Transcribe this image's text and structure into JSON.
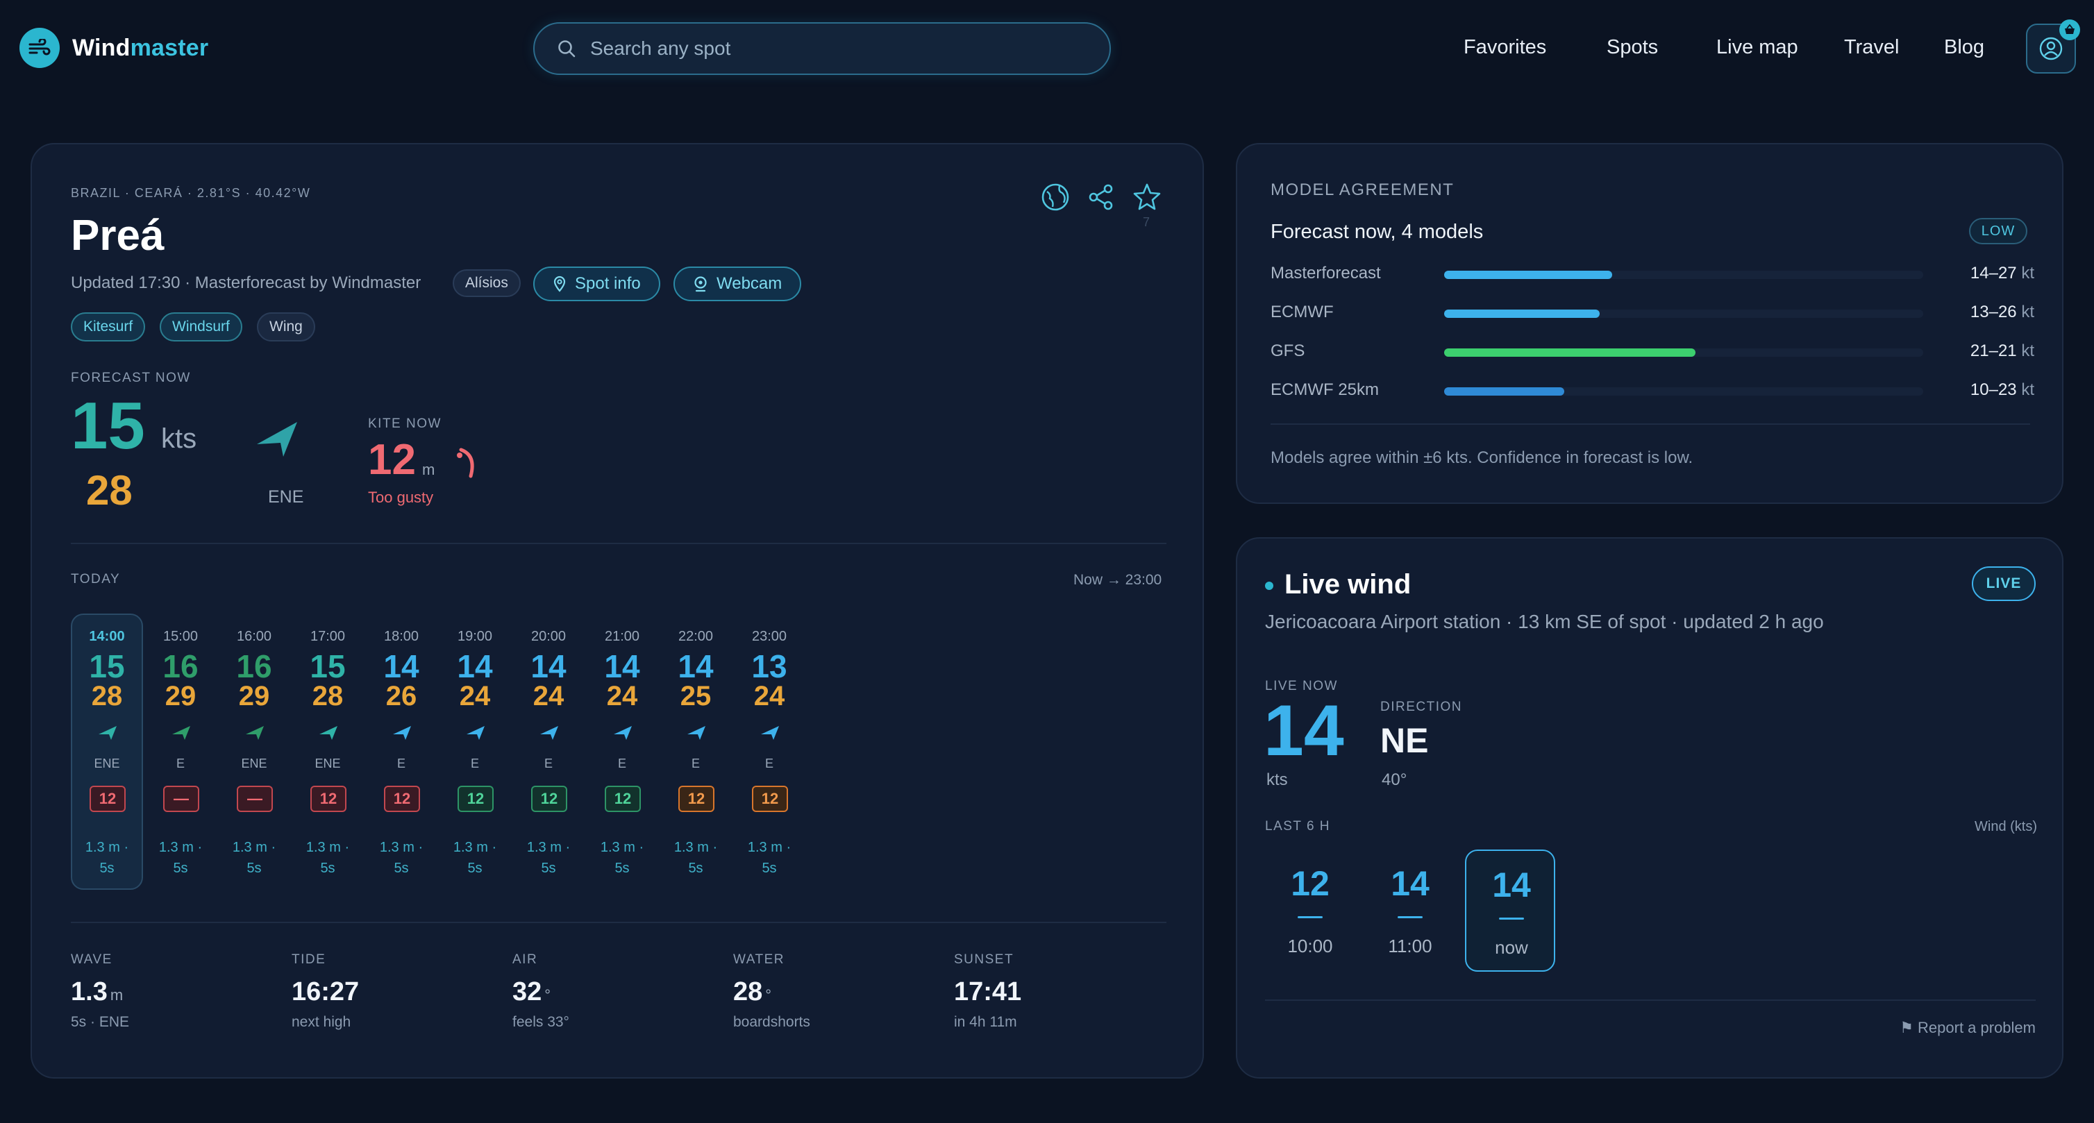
{
  "brand": {
    "name_part1": "Wind",
    "name_part2": "master"
  },
  "search": {
    "placeholder": "Search any spot"
  },
  "nav": [
    "Favorites",
    "Spots",
    "Live map",
    "Travel",
    "Blog"
  ],
  "spot": {
    "location": "BRAZIL · CEARÁ · 2.81°S · 40.42°W",
    "name": "Preá",
    "updated": "Updated 17:30 · Masterforecast by Windmaster",
    "model_chip": "Alísios",
    "spot_info_label": "Spot info",
    "webcam_label": "Webcam",
    "favorite_count": "7",
    "sports": [
      "Kitesurf",
      "Windsurf",
      "Wing"
    ]
  },
  "forecast_now": {
    "label": "FORECAST NOW",
    "wind": "15",
    "unit": "kts",
    "gust": "28",
    "direction": "ENE",
    "kite_label": "KITE NOW",
    "kite_size": "12",
    "kite_unit": "m",
    "kite_status": "Too gusty"
  },
  "today": {
    "label": "TODAY",
    "range": "Now → 23:00",
    "hours": [
      {
        "time": "14:00",
        "wind": "15",
        "gust": "28",
        "dir": "ENE",
        "kite": "12",
        "kite_state": "red",
        "wave_line1": "1.3 m ·",
        "wave_line2": "5s",
        "wind_color": "#2fb3a8"
      },
      {
        "time": "15:00",
        "wind": "16",
        "gust": "29",
        "dir": "E",
        "kite": "—",
        "kite_state": "red",
        "wave_line1": "1.3 m ·",
        "wave_line2": "5s",
        "wind_color": "#2f9e6a"
      },
      {
        "time": "16:00",
        "wind": "16",
        "gust": "29",
        "dir": "ENE",
        "kite": "—",
        "kite_state": "red",
        "wave_line1": "1.3 m ·",
        "wave_line2": "5s",
        "wind_color": "#2f9e6a"
      },
      {
        "time": "17:00",
        "wind": "15",
        "gust": "28",
        "dir": "ENE",
        "kite": "12",
        "kite_state": "red",
        "wave_line1": "1.3 m ·",
        "wave_line2": "5s",
        "wind_color": "#2fb3a8"
      },
      {
        "time": "18:00",
        "wind": "14",
        "gust": "26",
        "dir": "E",
        "kite": "12",
        "kite_state": "red",
        "wave_line1": "1.3 m ·",
        "wave_line2": "5s",
        "wind_color": "#3db2ec"
      },
      {
        "time": "19:00",
        "wind": "14",
        "gust": "24",
        "dir": "E",
        "kite": "12",
        "kite_state": "green",
        "wave_line1": "1.3 m ·",
        "wave_line2": "5s",
        "wind_color": "#3db2ec"
      },
      {
        "time": "20:00",
        "wind": "14",
        "gust": "24",
        "dir": "E",
        "kite": "12",
        "kite_state": "green",
        "wave_line1": "1.3 m ·",
        "wave_line2": "5s",
        "wind_color": "#3db2ec"
      },
      {
        "time": "21:00",
        "wind": "14",
        "gust": "24",
        "dir": "E",
        "kite": "12",
        "kite_state": "green",
        "wave_line1": "1.3 m ·",
        "wave_line2": "5s",
        "wind_color": "#3db2ec"
      },
      {
        "time": "22:00",
        "wind": "14",
        "gust": "25",
        "dir": "E",
        "kite": "12",
        "kite_state": "orange",
        "wave_line1": "1.3 m ·",
        "wave_line2": "5s",
        "wind_color": "#3db2ec"
      },
      {
        "time": "23:00",
        "wind": "13",
        "gust": "24",
        "dir": "E",
        "kite": "12",
        "kite_state": "orange",
        "wave_line1": "1.3 m ·",
        "wave_line2": "5s",
        "wind_color": "#3db2ec"
      }
    ]
  },
  "conditions": [
    {
      "label": "WAVE",
      "value": "1.3",
      "unit": "m",
      "sub": "5s · ENE"
    },
    {
      "label": "TIDE",
      "value": "16:27",
      "unit": "",
      "sub": "next high"
    },
    {
      "label": "AIR",
      "value": "32",
      "unit": "°",
      "sub": "feels 33°"
    },
    {
      "label": "WATER",
      "value": "28",
      "unit": "°",
      "sub": "boardshorts"
    },
    {
      "label": "SUNSET",
      "value": "17:41",
      "unit": "",
      "sub": "in 4h 11m"
    }
  ],
  "models": {
    "label": "MODEL AGREEMENT",
    "title": "Forecast now, 4 models",
    "badge": "LOW",
    "rows": [
      {
        "name": "Masterforecast",
        "range": "14–27",
        "unit": "kt",
        "fill": 0.35,
        "color": "#3db2ec"
      },
      {
        "name": "ECMWF",
        "range": "13–26",
        "unit": "kt",
        "fill": 0.325,
        "color": "#3db2ec"
      },
      {
        "name": "GFS",
        "range": "21–21",
        "unit": "kt",
        "fill": 0.525,
        "color": "#3ccf6e"
      },
      {
        "name": "ECMWF 25km",
        "range": "10–23",
        "unit": "kt",
        "fill": 0.25,
        "color": "#2f8ad6"
      }
    ],
    "note": "Models agree within ±6 kts. Confidence in forecast is low."
  },
  "live": {
    "title": "Live wind",
    "badge": "LIVE",
    "station": "Jericoacoara Airport station · 13 km SE of spot · updated 2 h ago",
    "now_label": "LIVE NOW",
    "now_value": "14",
    "now_unit": "kts",
    "dir_label": "DIRECTION",
    "dir_value": "NE",
    "dir_degrees": "40°",
    "history_label": "LAST 6 H",
    "history_unit": "Wind (kts)",
    "history": [
      {
        "value": "12",
        "time": "10:00"
      },
      {
        "value": "14",
        "time": "11:00"
      },
      {
        "value": "14",
        "time": "now"
      }
    ],
    "report": "⚑ Report a problem"
  },
  "colors": {
    "accent": "#3cc3e0",
    "gust": "#e9a63a",
    "kite_bad": "#f06a72",
    "live_blue": "#3db2ec"
  }
}
